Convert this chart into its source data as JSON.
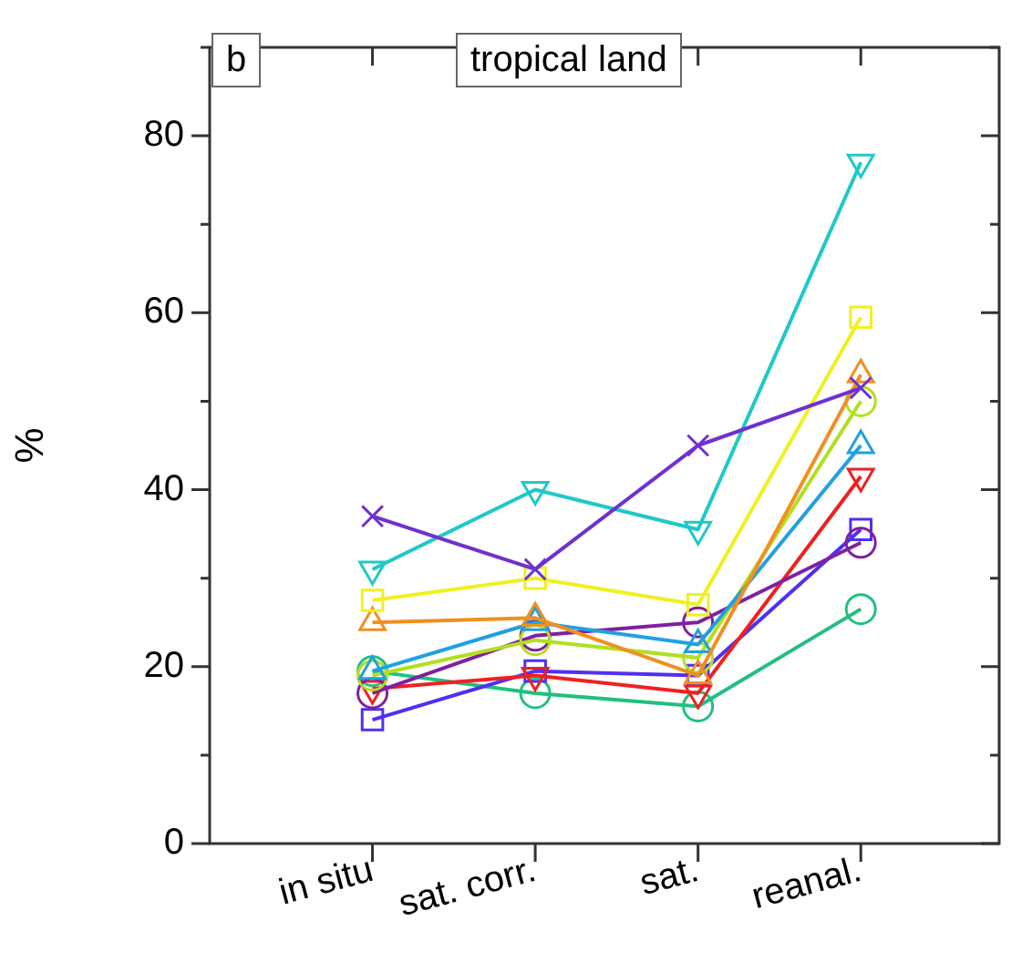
{
  "chart_data": {
    "type": "line",
    "ylabel": "%",
    "categories": [
      "in situ",
      "sat. corr.",
      "sat.",
      "reanal."
    ],
    "ylim": [
      0,
      90
    ],
    "yticks": [
      0,
      {
        "value": 10,
        "label": null
      },
      20,
      {
        "value": 30,
        "label": null
      },
      40,
      {
        "value": 50,
        "label": null
      },
      60,
      {
        "value": 70,
        "label": null
      },
      80,
      {
        "value": 90,
        "label": null
      }
    ],
    "grid": false,
    "legend": false,
    "annotations": [
      "b",
      "tropical land"
    ],
    "series": [
      {
        "color": "#7030d0",
        "marker": "cross",
        "values": [
          37,
          31,
          45,
          51.5
        ]
      },
      {
        "color": "#20c8c8",
        "marker": "triangle_down",
        "values": [
          31,
          40,
          35.5,
          77
        ]
      },
      {
        "color": "#f0f020",
        "marker": "square",
        "values": [
          27.5,
          30,
          27,
          59.5
        ]
      },
      {
        "color": "#f09020",
        "marker": "triangle",
        "values": [
          25,
          25.5,
          19,
          53
        ]
      },
      {
        "color": "#20a0e0",
        "marker": "triangle",
        "values": [
          19.5,
          25,
          22.5,
          45
        ]
      },
      {
        "color": "#b0e020",
        "marker": "circle",
        "values": [
          19,
          23,
          21,
          50
        ]
      },
      {
        "color": "#8020a0",
        "marker": "circle",
        "values": [
          17,
          23.5,
          25,
          34
        ]
      },
      {
        "color": "#f02020",
        "marker": "triangle_down",
        "values": [
          17.5,
          19,
          17,
          41.5
        ]
      },
      {
        "color": "#5030f0",
        "marker": "square",
        "values": [
          14,
          19.5,
          19,
          35.5
        ]
      },
      {
        "color": "#20c080",
        "marker": "circle",
        "values": [
          19.5,
          17,
          15.5,
          26.5
        ]
      }
    ]
  }
}
